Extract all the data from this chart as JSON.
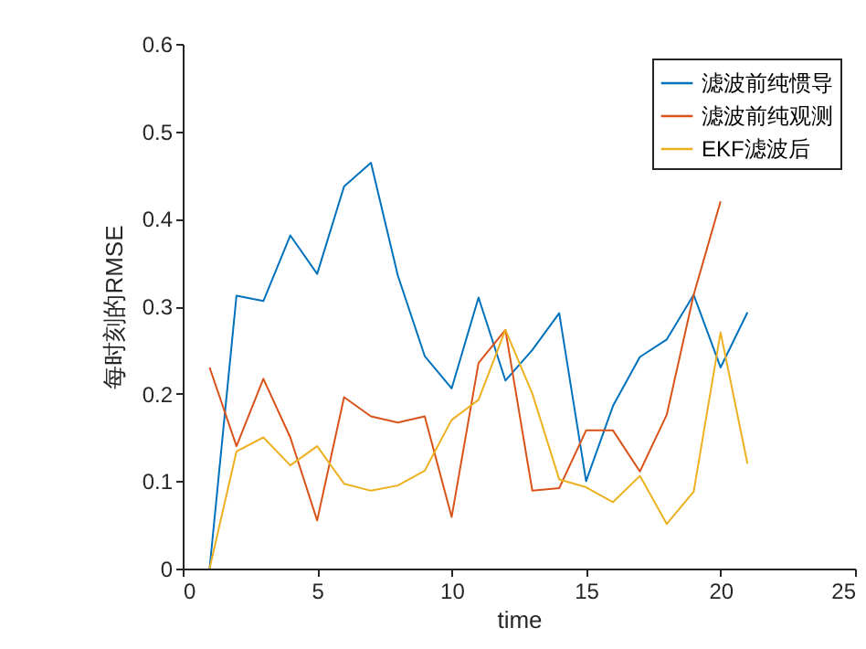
{
  "chart_data": {
    "type": "line",
    "xlabel": "time",
    "ylabel": "每时刻的RMSE",
    "x": [
      1,
      2,
      3,
      4,
      5,
      6,
      7,
      8,
      9,
      10,
      11,
      12,
      13,
      14,
      15,
      16,
      17,
      18,
      19,
      20,
      21
    ],
    "series": [
      {
        "name": "滤波前纯惯导",
        "color": "#0072bd",
        "values": [
          0.0,
          0.312,
          0.306,
          0.381,
          0.337,
          0.437,
          0.464,
          0.335,
          0.243,
          0.206,
          0.31,
          0.215,
          0.25,
          0.292,
          0.1,
          0.186,
          0.242,
          0.262,
          0.313,
          0.23,
          0.293
        ]
      },
      {
        "name": "滤波前纯观测",
        "color": "#d95319",
        "values": [
          0.23,
          0.14,
          0.217,
          0.15,
          0.055,
          0.196,
          0.174,
          0.167,
          0.174,
          0.059,
          0.235,
          0.273,
          0.089,
          0.092,
          0.158,
          0.158,
          0.111,
          0.176,
          0.313,
          0.42,
          null
        ]
      },
      {
        "name": "EKF滤波后",
        "color": "#edb120",
        "values": [
          0.0,
          0.134,
          0.15,
          0.118,
          0.14,
          0.097,
          0.089,
          0.095,
          0.112,
          0.17,
          0.193,
          0.273,
          0.2,
          0.102,
          0.093,
          0.076,
          0.106,
          0.051,
          0.088,
          0.27,
          0.12
        ]
      }
    ],
    "xlim": [
      0,
      25
    ],
    "xticks": [
      0,
      5,
      10,
      15,
      20,
      25
    ],
    "ylim": [
      0,
      0.6
    ],
    "yticks": [
      0,
      0.1,
      0.2,
      0.3,
      0.4,
      0.5,
      0.6
    ],
    "grid": false,
    "legend": "top right",
    "marker": "none",
    "line_style": "solid"
  }
}
